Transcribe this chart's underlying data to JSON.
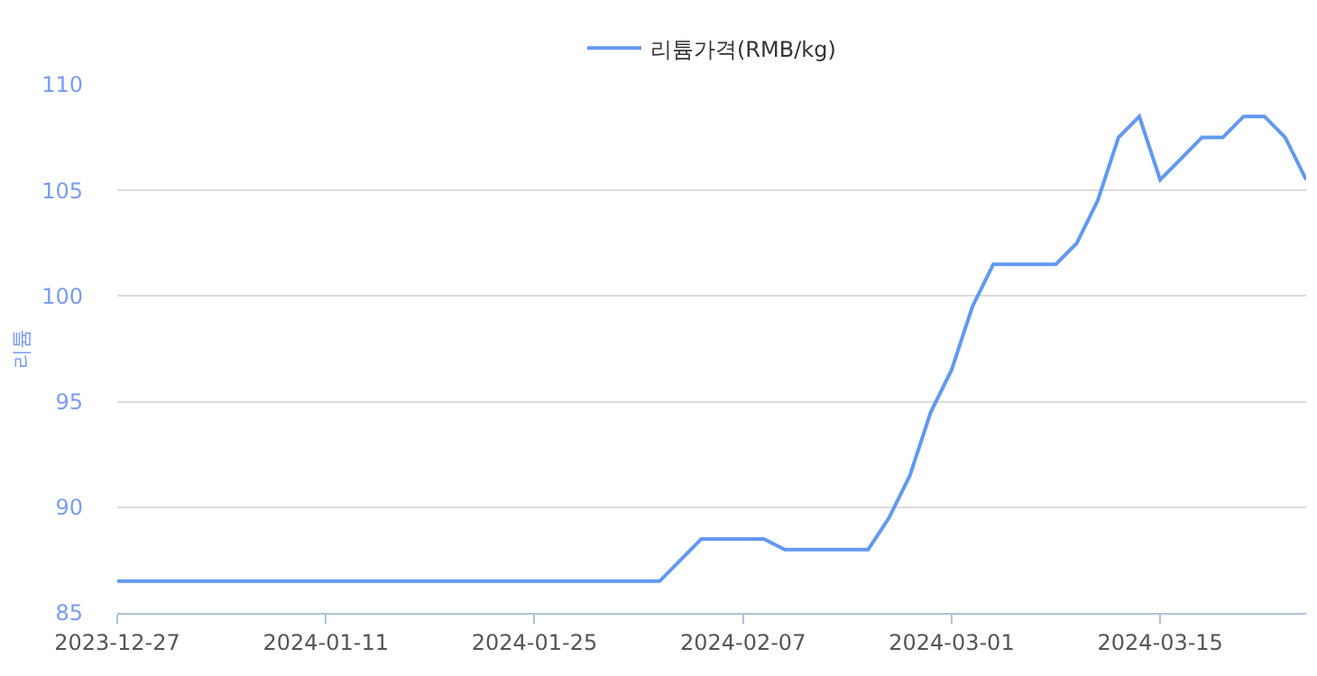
{
  "chart_data": {
    "type": "line",
    "ylabel": "리튬",
    "categories": [
      "2023-12-27",
      null,
      null,
      null,
      null,
      null,
      null,
      null,
      null,
      null,
      "2024-01-11",
      null,
      null,
      null,
      null,
      null,
      null,
      null,
      null,
      null,
      "2024-01-25",
      null,
      null,
      null,
      null,
      null,
      null,
      null,
      null,
      null,
      "2024-02-07",
      null,
      null,
      null,
      null,
      null,
      null,
      null,
      null,
      null,
      "2024-03-01",
      null,
      null,
      null,
      null,
      null,
      null,
      null,
      null,
      null,
      "2024-03-15",
      null,
      null,
      null,
      null,
      null,
      null,
      null
    ],
    "series": [
      {
        "name": "리튬가격(RMB/kg)",
        "color": "#6199f0",
        "values": [
          86.5,
          86.5,
          86.5,
          86.5,
          86.5,
          86.5,
          86.5,
          86.5,
          86.5,
          86.5,
          86.5,
          86.5,
          86.5,
          86.5,
          86.5,
          86.5,
          86.5,
          86.5,
          86.5,
          86.5,
          86.5,
          86.5,
          86.5,
          86.5,
          86.5,
          86.5,
          86.5,
          87.5,
          88.5,
          88.5,
          88.5,
          88.5,
          88,
          88,
          88,
          88,
          88,
          89.5,
          91.5,
          94.5,
          96.5,
          99.5,
          101.5,
          101.5,
          101.5,
          101.5,
          102.5,
          104.5,
          107.5,
          108.5,
          105.5,
          106.5,
          107.5,
          107.5,
          108.5,
          108.5,
          107.5,
          105.5
        ]
      }
    ],
    "ylim": [
      85,
      110
    ],
    "yticks": [
      85,
      90,
      95,
      100,
      105,
      110
    ],
    "grid": "y",
    "legend": "top",
    "marker": "none",
    "line_style": "solid"
  }
}
